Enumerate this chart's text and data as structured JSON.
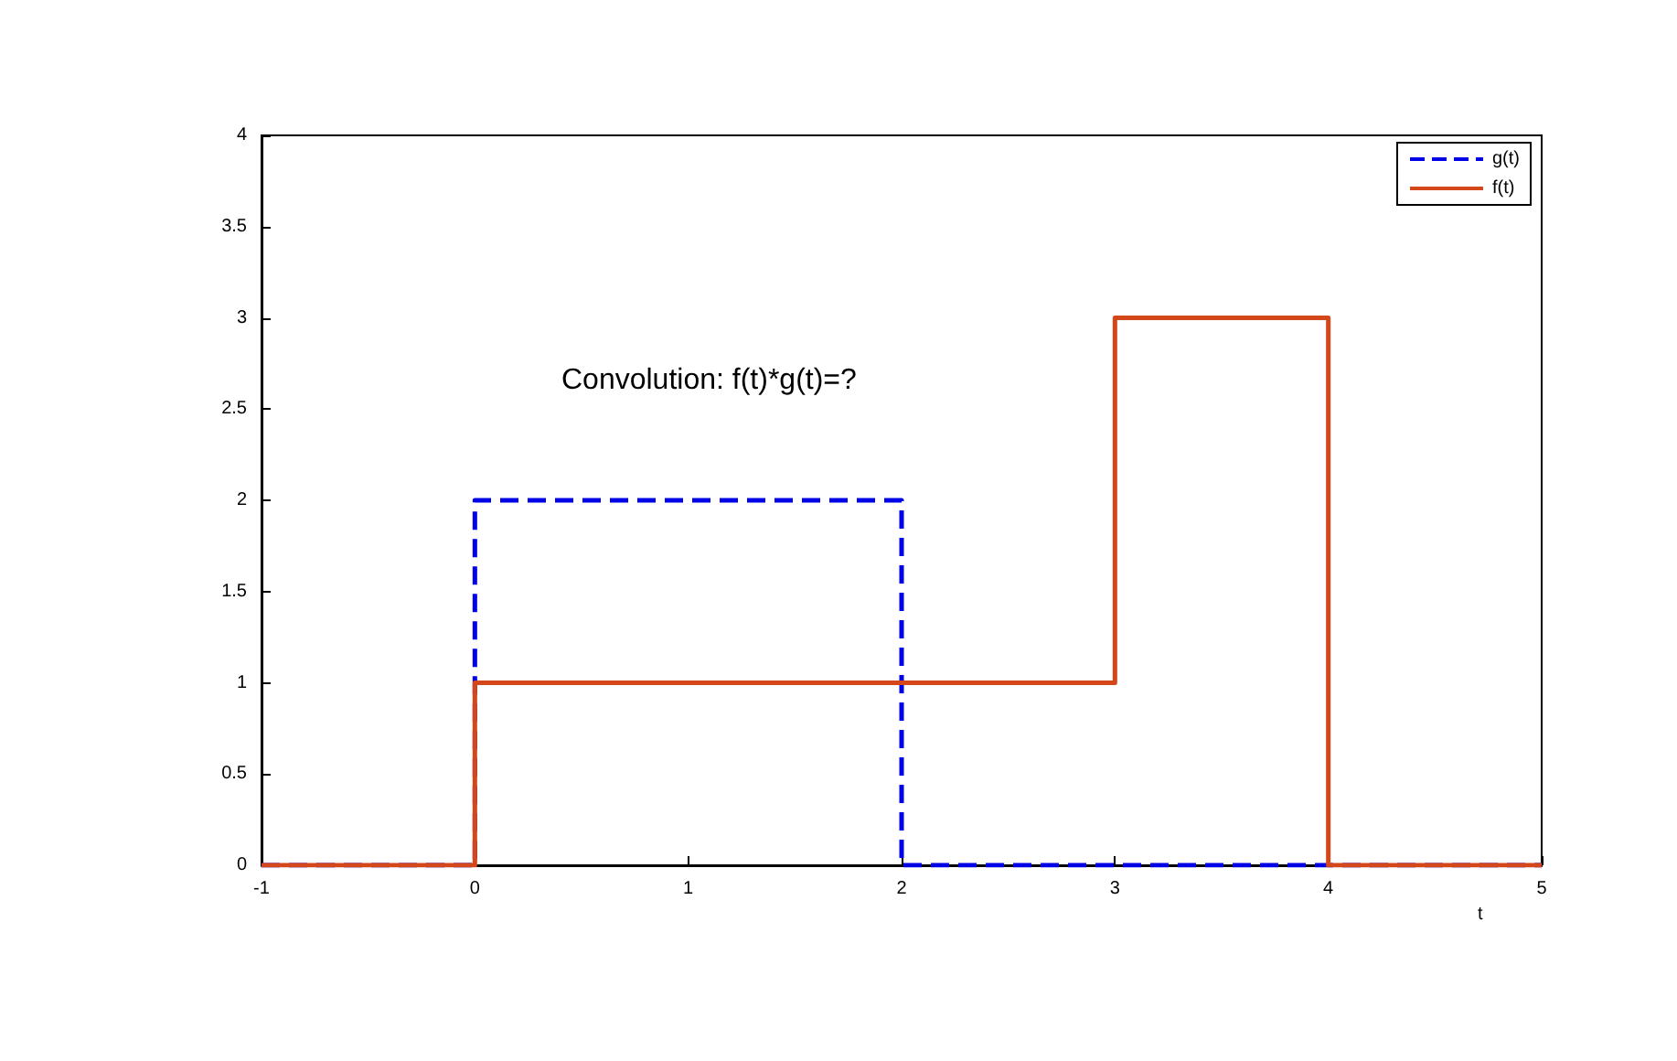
{
  "chart_data": {
    "type": "line",
    "xlabel": "t",
    "annotations": [
      "Convolution: f(t)*g(t)=?"
    ],
    "xlim": [
      -1,
      5
    ],
    "xticks": [
      -1,
      0,
      1,
      2,
      3,
      4,
      5
    ],
    "ylim": [
      0,
      4
    ],
    "yticks": [
      0,
      0.5,
      1,
      1.5,
      2,
      2.5,
      3,
      3.5,
      4
    ],
    "legend": "top right",
    "marker": "none",
    "grid": false,
    "series": [
      {
        "name": "g(t)",
        "color": "#0000e6",
        "line_style": "dashed",
        "x": [
          -1,
          0,
          0,
          2,
          2,
          5
        ],
        "values": [
          0,
          0,
          2,
          2,
          0,
          0
        ]
      },
      {
        "name": "f(t)",
        "color": "#d4471a",
        "line_style": "solid",
        "x": [
          -1,
          0,
          0,
          3,
          3,
          4,
          4,
          5
        ],
        "values": [
          0,
          0,
          1,
          1,
          3,
          3,
          0,
          0
        ]
      }
    ]
  }
}
